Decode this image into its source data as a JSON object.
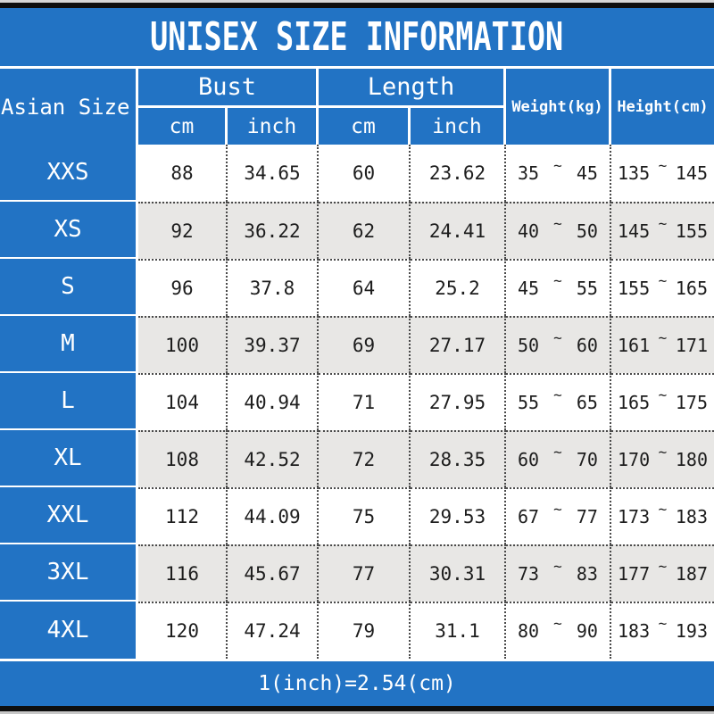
{
  "title": "UNISEX SIZE INFORMATION",
  "header": {
    "asian_size": "Asian Size",
    "bust": "Bust",
    "length": "Length",
    "bust_cm": "cm",
    "bust_inch": "inch",
    "length_cm": "cm",
    "length_inch": "inch",
    "weight": "Weight(kg)",
    "height": "Height(cm)"
  },
  "range_symbol": "~",
  "rows": [
    {
      "size": "XXS",
      "bust_cm": "88",
      "bust_inch": "34.65",
      "length_cm": "60",
      "length_inch": "23.62",
      "weight_min": "35",
      "weight_max": "45",
      "height_min": "135",
      "height_max": "145"
    },
    {
      "size": "XS",
      "bust_cm": "92",
      "bust_inch": "36.22",
      "length_cm": "62",
      "length_inch": "24.41",
      "weight_min": "40",
      "weight_max": "50",
      "height_min": "145",
      "height_max": "155"
    },
    {
      "size": "S",
      "bust_cm": "96",
      "bust_inch": "37.8",
      "length_cm": "64",
      "length_inch": "25.2",
      "weight_min": "45",
      "weight_max": "55",
      "height_min": "155",
      "height_max": "165"
    },
    {
      "size": "M",
      "bust_cm": "100",
      "bust_inch": "39.37",
      "length_cm": "69",
      "length_inch": "27.17",
      "weight_min": "50",
      "weight_max": "60",
      "height_min": "161",
      "height_max": "171"
    },
    {
      "size": "L",
      "bust_cm": "104",
      "bust_inch": "40.94",
      "length_cm": "71",
      "length_inch": "27.95",
      "weight_min": "55",
      "weight_max": "65",
      "height_min": "165",
      "height_max": "175"
    },
    {
      "size": "XL",
      "bust_cm": "108",
      "bust_inch": "42.52",
      "length_cm": "72",
      "length_inch": "28.35",
      "weight_min": "60",
      "weight_max": "70",
      "height_min": "170",
      "height_max": "180"
    },
    {
      "size": "XXL",
      "bust_cm": "112",
      "bust_inch": "44.09",
      "length_cm": "75",
      "length_inch": "29.53",
      "weight_min": "67",
      "weight_max": "77",
      "height_min": "173",
      "height_max": "183"
    },
    {
      "size": "3XL",
      "bust_cm": "116",
      "bust_inch": "45.67",
      "length_cm": "77",
      "length_inch": "30.31",
      "weight_min": "73",
      "weight_max": "83",
      "height_min": "177",
      "height_max": "187"
    },
    {
      "size": "4XL",
      "bust_cm": "120",
      "bust_inch": "47.24",
      "length_cm": "79",
      "length_inch": "31.1",
      "weight_min": "80",
      "weight_max": "90",
      "height_min": "183",
      "height_max": "193"
    }
  ],
  "footer": "1(inch)=2.54(cm)",
  "colors": {
    "accent_blue": "#2273c4",
    "row_alt_gray": "#e8e7e5",
    "bar_black": "#0e0e0e"
  }
}
